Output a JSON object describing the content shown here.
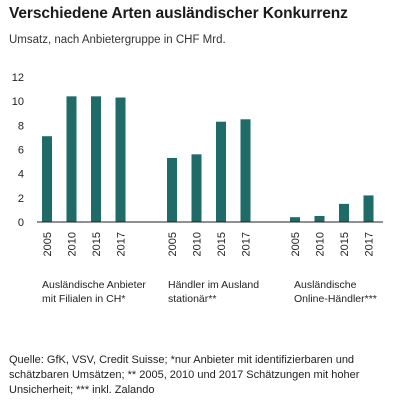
{
  "title": "Verschiedene Arten ausländischer Konkurrenz",
  "subtitle": "Umsatz, nach Anbietergruppe in CHF Mrd.",
  "source": "Quelle: GfK, VSV, Credit Suisse; *nur Anbieter mit identifizierbaren und schätzbaren Umsätzen; ** 2005, 2010 und 2017 Schätzungen mit hoher Unsicherheit; *** inkl. Zalando",
  "colors": {
    "bar": "#1e6b68",
    "axis": "#222222",
    "grid": "#dddddd"
  },
  "chart_data": {
    "type": "bar",
    "title": "Verschiedene Arten ausländischer Konkurrenz",
    "subtitle": "Umsatz, nach Anbietergruppe in CHF Mrd.",
    "ylim": [
      0,
      12
    ],
    "yticks": [
      0,
      2,
      4,
      6,
      8,
      10,
      12
    ],
    "grid": false,
    "groups": [
      {
        "label": "Ausländische Anbieter mit Filialen in CH*",
        "categories": [
          "2005",
          "2010",
          "2015",
          "2017"
        ],
        "values": [
          7.1,
          10.4,
          10.4,
          10.3
        ]
      },
      {
        "label": "Händler im Ausland stationär**",
        "categories": [
          "2005",
          "2010",
          "2015",
          "2017"
        ],
        "values": [
          5.3,
          5.6,
          8.3,
          8.5
        ]
      },
      {
        "label": "Ausländische Online-Händler***",
        "categories": [
          "2005",
          "2010",
          "2015",
          "2017"
        ],
        "values": [
          0.4,
          0.5,
          1.5,
          2.2
        ]
      }
    ]
  }
}
